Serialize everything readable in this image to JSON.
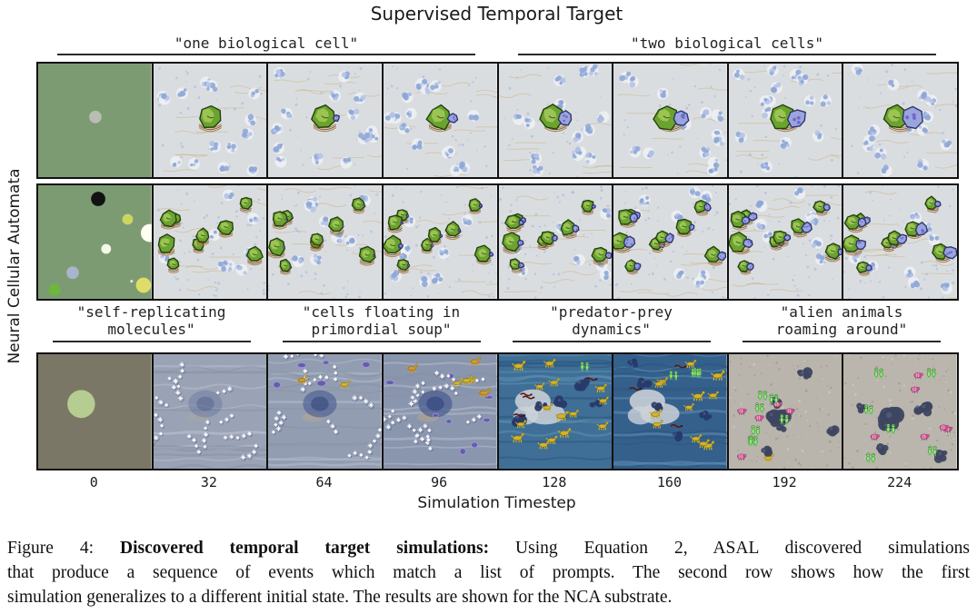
{
  "figure": {
    "title": "Supervised Temporal Target",
    "y_axis_label": "Neural Cellular Automata",
    "x_axis_label": "Simulation Timestep",
    "ticks": [
      "0",
      "32",
      "64",
      "96",
      "128",
      "160",
      "192",
      "224"
    ],
    "group_labels": [
      "\"one biological cell\"",
      "\"two biological cells\""
    ],
    "prompt_labels": [
      {
        "line1": "\"self-replicating",
        "line2": "molecules\""
      },
      {
        "line1": "\"cells floating in",
        "line2": "primordial soup\""
      },
      {
        "line1": "\"predator-prey",
        "line2": "dynamics\""
      },
      {
        "line1": "\"alien animals",
        "line2": "roaming around\""
      }
    ]
  },
  "caption": {
    "line1_prefix": "Figure 4: ",
    "line1_bold": "Discovered temporal target simulations:",
    "line1_rest": "  Using Equation 2, ASAL discovered simulations",
    "line2": "that produce a sequence of events which match a list of prompts.  The second row shows how the first",
    "line3": "simulation generalizes to a different initial state. The results are shown for the NCA substrate."
  },
  "palette": {
    "border": "#111111",
    "seed_green": "#7d9b73",
    "seed_olive": "#7b7767",
    "cell_bg": "#dadde0",
    "cell_blue": "#8ca6d6",
    "cell_green": "#6aa32e",
    "cell_green_dark": "#24400d",
    "companion_blue": "#9aa5de",
    "companion_dark": "#2c3470",
    "basket": "#a9804a",
    "mol_star": "#ffffff",
    "mol_blob": "#46598f",
    "ring_purple": "#5f54ac",
    "animal_yellow": "#d2b32a",
    "worm_red": "#5a140c",
    "alien_green": "#8fe87d",
    "alien_pink": "#d8609c",
    "dark_blob": "#3d4660"
  },
  "rows": [
    {
      "name": "nca-simulation-1",
      "panels": [
        {
          "t": 0,
          "kind": "seed",
          "bg": "#7d9b73",
          "dots": [
            {
              "x": 0.505,
              "y": 0.47,
              "r": 7,
              "c": "#b9bdb4"
            }
          ]
        },
        {
          "t": 32,
          "kind": "one-cell",
          "pair": 0
        },
        {
          "t": 64,
          "kind": "one-cell",
          "pair": 0.3
        },
        {
          "t": 96,
          "kind": "one-cell",
          "pair": 0.45
        },
        {
          "t": 128,
          "kind": "two-cell",
          "pair": 0.65
        },
        {
          "t": 160,
          "kind": "two-cell",
          "pair": 0.78
        },
        {
          "t": 192,
          "kind": "two-cell",
          "pair": 0.9
        },
        {
          "t": 224,
          "kind": "two-cell",
          "pair": 1.0
        }
      ]
    },
    {
      "name": "nca-simulation-1-new-init",
      "panels": [
        {
          "t": 0,
          "kind": "seed",
          "bg": "#7d9b73",
          "dots": [
            {
              "x": 0.53,
              "y": 0.12,
              "r": 8,
              "c": "#121212"
            },
            {
              "x": 0.79,
              "y": 0.3,
              "r": 6,
              "c": "#ccd65e"
            },
            {
              "x": 0.985,
              "y": 0.42,
              "r": 10,
              "c": "#fffff2"
            },
            {
              "x": 0.6,
              "y": 0.56,
              "r": 5.5,
              "c": "#f4f8e8"
            },
            {
              "x": 0.305,
              "y": 0.77,
              "r": 7,
              "c": "#aab4cc"
            },
            {
              "x": 0.145,
              "y": 0.92,
              "r": 6.5,
              "c": "#6cb83a"
            },
            {
              "x": 0.825,
              "y": 0.845,
              "r": 1.5,
              "c": "#e8ecdf"
            },
            {
              "x": 0.93,
              "y": 0.88,
              "r": 8.5,
              "c": "#e0dc6a"
            }
          ]
        },
        {
          "t": 32,
          "kind": "multi-cell",
          "pair": 0
        },
        {
          "t": 64,
          "kind": "multi-cell",
          "pair": 0.1
        },
        {
          "t": 96,
          "kind": "multi-cell",
          "pair": 0.3
        },
        {
          "t": 128,
          "kind": "multi-cell",
          "pair": 0.6
        },
        {
          "t": 160,
          "kind": "multi-cell",
          "pair": 0.75
        },
        {
          "t": 192,
          "kind": "multi-cell",
          "pair": 0.9
        },
        {
          "t": 224,
          "kind": "multi-cell",
          "pair": 1.0
        }
      ]
    },
    {
      "name": "nca-simulation-2",
      "panels": [
        {
          "t": 0,
          "kind": "seed",
          "bg": "#7b7767",
          "dots": [
            {
              "x": 0.38,
              "y": 0.435,
              "r": 15.5,
              "c": "#b5cd90"
            }
          ]
        },
        {
          "t": 32,
          "kind": "molecules",
          "bg": "#9aa3b5",
          "blob": 0.35,
          "rings": 0,
          "animals": 0
        },
        {
          "t": 64,
          "kind": "molecules",
          "bg": "#939db2",
          "blob": 0.75,
          "rings": 5,
          "animals": 2
        },
        {
          "t": 96,
          "kind": "molecules",
          "bg": "#8a96ae",
          "blob": 0.85,
          "rings": 9,
          "animals": 6
        },
        {
          "t": 128,
          "kind": "predator",
          "bg": "#3f6f96",
          "animals": 15,
          "worms": 4,
          "aliens": 1
        },
        {
          "t": 160,
          "kind": "predator",
          "bg": "#35608c",
          "animals": 12,
          "worms": 3,
          "aliens": 3
        },
        {
          "t": 192,
          "kind": "aliens",
          "bg": "#b9b5ac",
          "aliens": 7,
          "pink": 5,
          "animals": 1
        },
        {
          "t": 224,
          "kind": "aliens",
          "bg": "#bab6ad",
          "aliens": 6,
          "pink": 6,
          "animals": 0
        }
      ]
    }
  ]
}
